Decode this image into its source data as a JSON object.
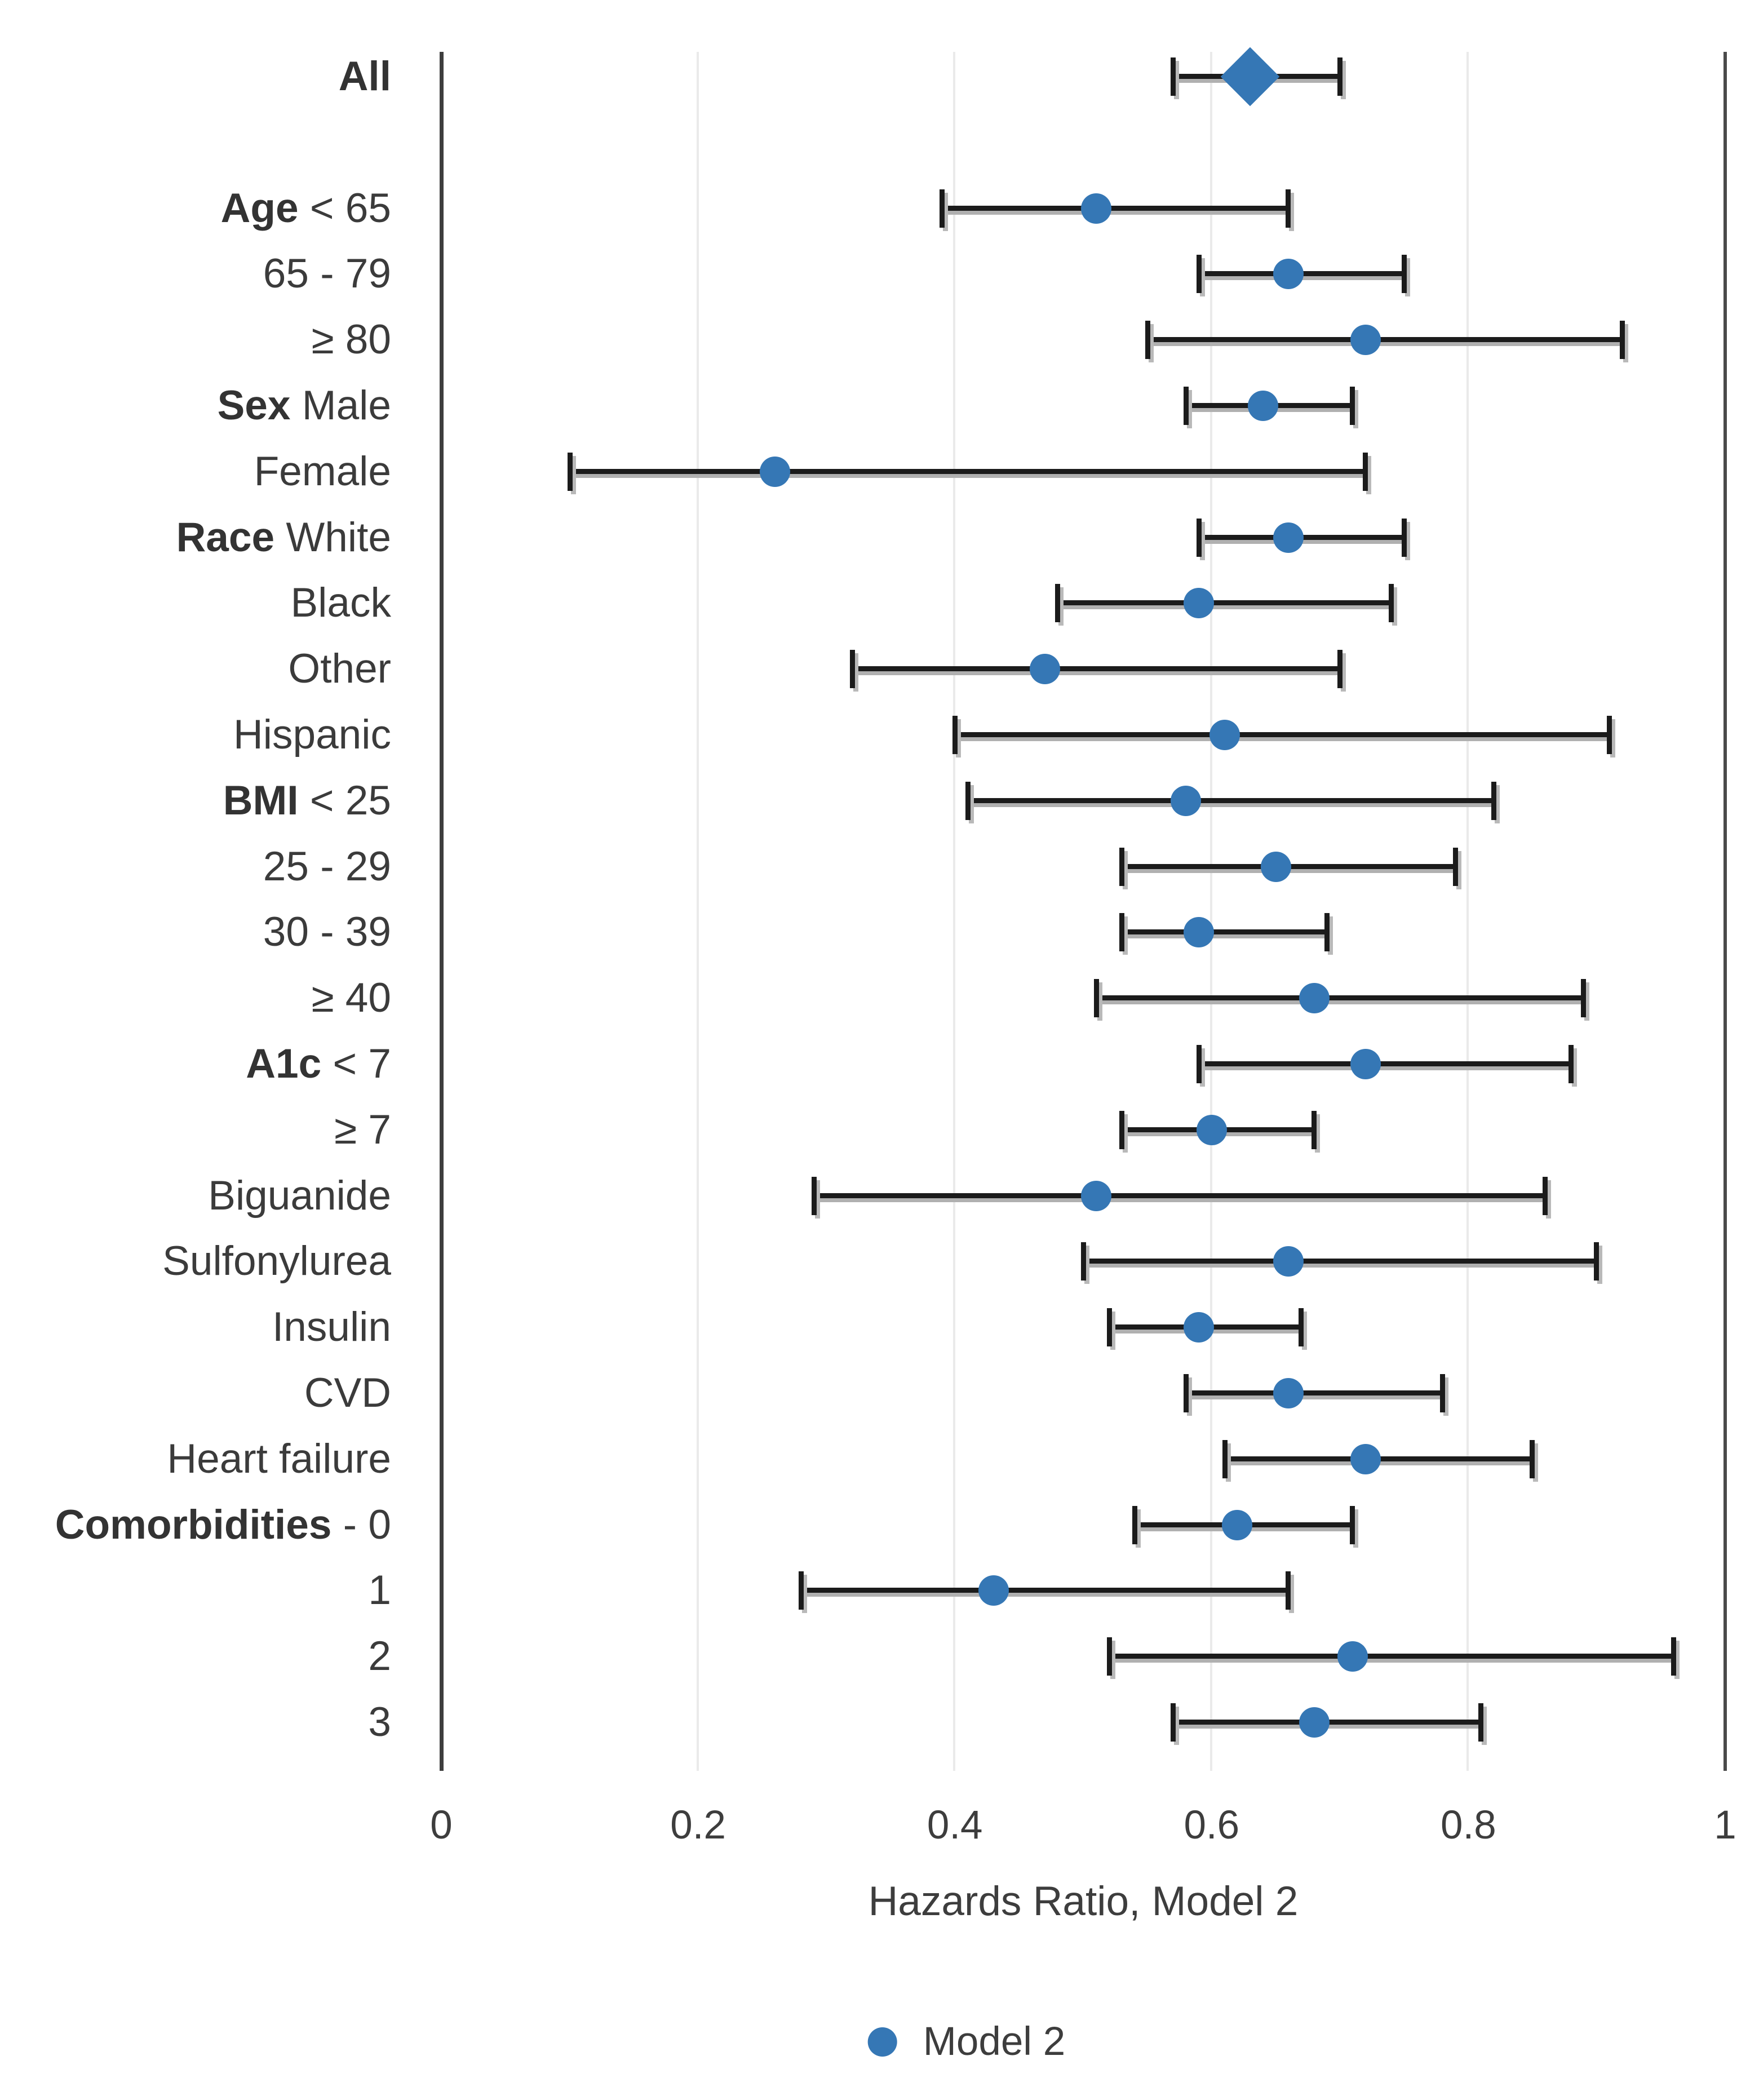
{
  "colors": {
    "marker_blue": "#3577B5",
    "ci_line_black": "#1b1b1b",
    "ci_shadow_gray": "#b0b0b0",
    "axis_dark_gray": "#3e3e3e",
    "gridline_gray": "#eaeaea",
    "text_gray": "#3b3b3b",
    "background": "#ffffff"
  },
  "chart_data": {
    "type": "scatter",
    "subtype": "forest-plot-hazard-ratios-with-95pct-CI-error-bars",
    "title": "",
    "xlabel": "Hazards Ratio, Model 2",
    "ylabel": "",
    "xlim": [
      0,
      1
    ],
    "x_ticks": [
      0,
      0.2,
      0.4,
      0.6,
      0.8,
      1
    ],
    "x_tick_labels": [
      "0",
      "0.2",
      "0.4",
      "0.6",
      "0.8",
      "1"
    ],
    "grid": "light vertical gridlines at each x tick; dark vertical lines at 0 (axis) and 1 (right border)",
    "legend": {
      "position": "bottom-center",
      "entries": [
        {
          "label": "Model 2",
          "marker": "circle",
          "color": "#3577B5"
        }
      ]
    },
    "rows": [
      {
        "label_bold": "All",
        "label": "",
        "marker": "diamond",
        "hr": 0.63,
        "ci_low": 0.57,
        "ci_high": 0.7
      },
      {
        "label_bold": "Age",
        "label": "< 65",
        "marker": "circle",
        "hr": 0.51,
        "ci_low": 0.39,
        "ci_high": 0.66
      },
      {
        "label_bold": "",
        "label": "65 - 79",
        "marker": "circle",
        "hr": 0.66,
        "ci_low": 0.59,
        "ci_high": 0.75
      },
      {
        "label_bold": "",
        "label": "≥ 80",
        "marker": "circle",
        "hr": 0.72,
        "ci_low": 0.55,
        "ci_high": 0.92
      },
      {
        "label_bold": "Sex",
        "label": "Male",
        "marker": "circle",
        "hr": 0.64,
        "ci_low": 0.58,
        "ci_high": 0.71
      },
      {
        "label_bold": "",
        "label": "Female",
        "marker": "circle",
        "hr": 0.26,
        "ci_low": 0.1,
        "ci_high": 0.72
      },
      {
        "label_bold": "Race",
        "label": "White",
        "marker": "circle",
        "hr": 0.66,
        "ci_low": 0.59,
        "ci_high": 0.75
      },
      {
        "label_bold": "",
        "label": "Black",
        "marker": "circle",
        "hr": 0.59,
        "ci_low": 0.48,
        "ci_high": 0.74
      },
      {
        "label_bold": "",
        "label": "Other",
        "marker": "circle",
        "hr": 0.47,
        "ci_low": 0.32,
        "ci_high": 0.7
      },
      {
        "label_bold": "",
        "label": "Hispanic",
        "marker": "circle",
        "hr": 0.61,
        "ci_low": 0.4,
        "ci_high": 0.91
      },
      {
        "label_bold": "BMI",
        "label": "< 25",
        "marker": "circle",
        "hr": 0.58,
        "ci_low": 0.41,
        "ci_high": 0.82
      },
      {
        "label_bold": "",
        "label": "25 - 29",
        "marker": "circle",
        "hr": 0.65,
        "ci_low": 0.53,
        "ci_high": 0.79
      },
      {
        "label_bold": "",
        "label": "30 - 39",
        "marker": "circle",
        "hr": 0.59,
        "ci_low": 0.53,
        "ci_high": 0.69
      },
      {
        "label_bold": "",
        "label": "≥ 40",
        "marker": "circle",
        "hr": 0.68,
        "ci_low": 0.51,
        "ci_high": 0.89
      },
      {
        "label_bold": "A1c",
        "label": "< 7",
        "marker": "circle",
        "hr": 0.72,
        "ci_low": 0.59,
        "ci_high": 0.88
      },
      {
        "label_bold": "",
        "label": "≥ 7",
        "marker": "circle",
        "hr": 0.6,
        "ci_low": 0.53,
        "ci_high": 0.68
      },
      {
        "label_bold": "",
        "label": "Biguanide",
        "marker": "circle",
        "hr": 0.51,
        "ci_low": 0.29,
        "ci_high": 0.86
      },
      {
        "label_bold": "",
        "label": "Sulfonylurea",
        "marker": "circle",
        "hr": 0.66,
        "ci_low": 0.5,
        "ci_high": 0.9
      },
      {
        "label_bold": "",
        "label": "Insulin",
        "marker": "circle",
        "hr": 0.59,
        "ci_low": 0.52,
        "ci_high": 0.67
      },
      {
        "label_bold": "",
        "label": "CVD",
        "marker": "circle",
        "hr": 0.66,
        "ci_low": 0.58,
        "ci_high": 0.78
      },
      {
        "label_bold": "",
        "label": "Heart failure",
        "marker": "circle",
        "hr": 0.72,
        "ci_low": 0.61,
        "ci_high": 0.85
      },
      {
        "label_bold": "Comorbidities",
        "label": "- 0",
        "marker": "circle",
        "hr": 0.62,
        "ci_low": 0.54,
        "ci_high": 0.71
      },
      {
        "label_bold": "",
        "label": "1",
        "marker": "circle",
        "hr": 0.43,
        "ci_low": 0.28,
        "ci_high": 0.66
      },
      {
        "label_bold": "",
        "label": "2",
        "marker": "circle",
        "hr": 0.71,
        "ci_low": 0.52,
        "ci_high": 0.96
      },
      {
        "label_bold": "",
        "label": "3",
        "marker": "circle",
        "hr": 0.68,
        "ci_low": 0.57,
        "ci_high": 0.81
      }
    ]
  }
}
